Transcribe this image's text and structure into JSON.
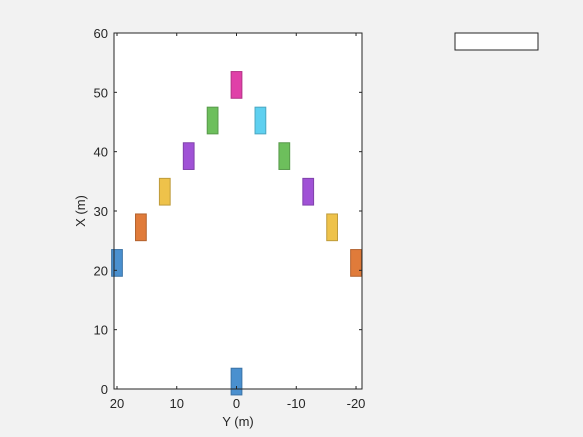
{
  "chart_data": {
    "type": "scatter",
    "marker": "rectangle",
    "xlabel": "Y (m)",
    "ylabel": "X (m)",
    "xlim": [
      20.5,
      -21
    ],
    "ylim": [
      0,
      60
    ],
    "x_ticks": [
      20,
      10,
      0,
      -10,
      -20
    ],
    "x_tick_labels": [
      "20",
      "10",
      "0",
      "-10",
      "-20"
    ],
    "y_ticks": [
      0,
      10,
      20,
      30,
      40,
      50,
      60
    ],
    "y_tick_labels": [
      "0",
      "10",
      "20",
      "30",
      "40",
      "50",
      "60"
    ],
    "grid": false,
    "legend": {
      "position": "top-right",
      "entries": []
    },
    "colors": {
      "blue": "#4a90cf",
      "orange": "#e07b3a",
      "yellow": "#eec24a",
      "purple": "#a052d6",
      "green": "#6dbf5c",
      "cyan": "#5ed0f0",
      "magenta": "#e040a8"
    },
    "objects": [
      {
        "y_m": 0,
        "x_m": 1.25,
        "width_m": 1.8,
        "length_m": 4.5,
        "color": "blue"
      },
      {
        "y_m": 20,
        "x_m": 21.25,
        "width_m": 1.8,
        "length_m": 4.5,
        "color": "blue"
      },
      {
        "y_m": -20,
        "x_m": 21.25,
        "width_m": 1.8,
        "length_m": 4.5,
        "color": "orange"
      },
      {
        "y_m": 16,
        "x_m": 27.25,
        "width_m": 1.8,
        "length_m": 4.5,
        "color": "orange"
      },
      {
        "y_m": -16,
        "x_m": 27.25,
        "width_m": 1.8,
        "length_m": 4.5,
        "color": "yellow"
      },
      {
        "y_m": 12,
        "x_m": 33.25,
        "width_m": 1.8,
        "length_m": 4.5,
        "color": "yellow"
      },
      {
        "y_m": -12,
        "x_m": 33.25,
        "width_m": 1.8,
        "length_m": 4.5,
        "color": "purple"
      },
      {
        "y_m": 8,
        "x_m": 39.25,
        "width_m": 1.8,
        "length_m": 4.5,
        "color": "purple"
      },
      {
        "y_m": -8,
        "x_m": 39.25,
        "width_m": 1.8,
        "length_m": 4.5,
        "color": "green"
      },
      {
        "y_m": 4,
        "x_m": 45.25,
        "width_m": 1.8,
        "length_m": 4.5,
        "color": "green"
      },
      {
        "y_m": -4,
        "x_m": 45.25,
        "width_m": 1.8,
        "length_m": 4.5,
        "color": "cyan"
      },
      {
        "y_m": 0,
        "x_m": 51.25,
        "width_m": 1.8,
        "length_m": 4.5,
        "color": "magenta"
      }
    ]
  }
}
